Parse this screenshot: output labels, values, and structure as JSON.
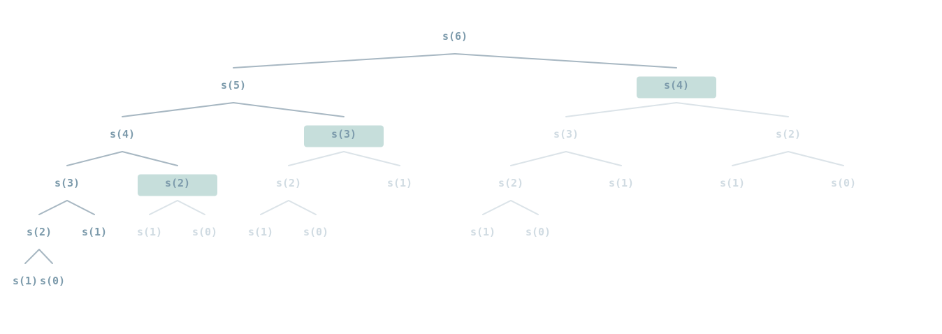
{
  "diagram": {
    "colors": {
      "active_text": "#7c9aab",
      "faded_text": "#d0dbe2",
      "active_edge": "#a7b7c2",
      "faded_edge": "#dbe3e8",
      "highlight": "#c6dedb"
    },
    "nodes": [
      {
        "id": "n0",
        "label": "s(6)",
        "state": "active",
        "highlight": false,
        "children": [
          "n1",
          "n2"
        ]
      },
      {
        "id": "n1",
        "label": "s(5)",
        "state": "active",
        "highlight": false,
        "children": [
          "n3",
          "n4"
        ]
      },
      {
        "id": "n2",
        "label": "s(4)",
        "state": "active",
        "highlight": true,
        "children": [
          "n5",
          "n6"
        ]
      },
      {
        "id": "n3",
        "label": "s(4)",
        "state": "active",
        "highlight": false,
        "children": [
          "n7",
          "n8"
        ]
      },
      {
        "id": "n4",
        "label": "s(3)",
        "state": "active",
        "highlight": true,
        "children": [
          "n9",
          "n10"
        ]
      },
      {
        "id": "n5",
        "label": "s(3)",
        "state": "faded",
        "highlight": false,
        "children": [
          "n11",
          "n12"
        ]
      },
      {
        "id": "n6",
        "label": "s(2)",
        "state": "faded",
        "highlight": false,
        "children": [
          "n13",
          "n14"
        ]
      },
      {
        "id": "n7",
        "label": "s(3)",
        "state": "active",
        "highlight": false,
        "children": [
          "n15",
          "n16"
        ]
      },
      {
        "id": "n8",
        "label": "s(2)",
        "state": "active",
        "highlight": true,
        "children": [
          "n17",
          "n18"
        ]
      },
      {
        "id": "n9",
        "label": "s(2)",
        "state": "faded",
        "highlight": false,
        "children": [
          "n19",
          "n20"
        ]
      },
      {
        "id": "n10",
        "label": "s(1)",
        "state": "faded",
        "highlight": false,
        "children": []
      },
      {
        "id": "n11",
        "label": "s(2)",
        "state": "faded",
        "highlight": false,
        "children": [
          "n21",
          "n22"
        ]
      },
      {
        "id": "n12",
        "label": "s(1)",
        "state": "faded",
        "highlight": false,
        "children": []
      },
      {
        "id": "n13",
        "label": "s(1)",
        "state": "faded",
        "highlight": false,
        "children": []
      },
      {
        "id": "n14",
        "label": "s(0)",
        "state": "faded",
        "highlight": false,
        "children": []
      },
      {
        "id": "n15",
        "label": "s(2)",
        "state": "active",
        "highlight": false,
        "children": [
          "n23",
          "n24"
        ]
      },
      {
        "id": "n16",
        "label": "s(1)",
        "state": "active",
        "highlight": false,
        "children": []
      },
      {
        "id": "n17",
        "label": "s(1)",
        "state": "faded",
        "highlight": false,
        "children": []
      },
      {
        "id": "n18",
        "label": "s(0)",
        "state": "faded",
        "highlight": false,
        "children": []
      },
      {
        "id": "n19",
        "label": "s(1)",
        "state": "faded",
        "highlight": false,
        "children": []
      },
      {
        "id": "n20",
        "label": "s(0)",
        "state": "faded",
        "highlight": false,
        "children": []
      },
      {
        "id": "n21",
        "label": "s(1)",
        "state": "faded",
        "highlight": false,
        "children": []
      },
      {
        "id": "n22",
        "label": "s(0)",
        "state": "faded",
        "highlight": false,
        "children": []
      },
      {
        "id": "n23",
        "label": "s(1)",
        "state": "active",
        "highlight": false,
        "children": []
      },
      {
        "id": "n24",
        "label": "s(0)",
        "state": "active",
        "highlight": false,
        "children": []
      }
    ]
  }
}
